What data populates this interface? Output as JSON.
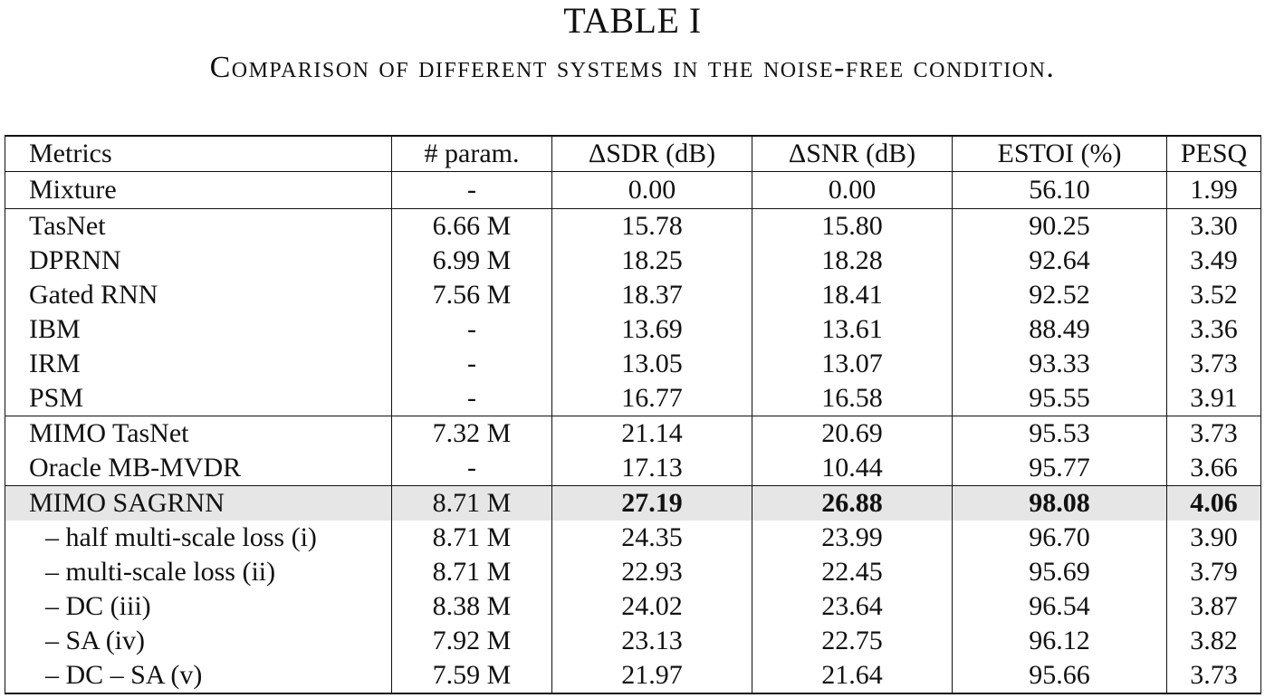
{
  "caption": {
    "label": "TABLE I",
    "text": "Comparison of different systems in the noise-free condition."
  },
  "table": {
    "headers": [
      "Metrics",
      "# param.",
      "ΔSDR (dB)",
      "ΔSNR (dB)",
      "ESTOI (%)",
      "PESQ"
    ],
    "rows": [
      [
        "Mixture",
        "-",
        "0.00",
        "0.00",
        "56.10",
        "1.99"
      ],
      [
        "TasNet",
        "6.66 M",
        "15.78",
        "15.80",
        "90.25",
        "3.30"
      ],
      [
        "DPRNN",
        "6.99 M",
        "18.25",
        "18.28",
        "92.64",
        "3.49"
      ],
      [
        "Gated RNN",
        "7.56 M",
        "18.37",
        "18.41",
        "92.52",
        "3.52"
      ],
      [
        "IBM",
        "-",
        "13.69",
        "13.61",
        "88.49",
        "3.36"
      ],
      [
        "IRM",
        "-",
        "13.05",
        "13.07",
        "93.33",
        "3.73"
      ],
      [
        "PSM",
        "-",
        "16.77",
        "16.58",
        "95.55",
        "3.91"
      ],
      [
        "MIMO TasNet",
        "7.32 M",
        "21.14",
        "20.69",
        "95.53",
        "3.73"
      ],
      [
        "Oracle MB-MVDR",
        "-",
        "17.13",
        "10.44",
        "95.77",
        "3.66"
      ],
      [
        "MIMO SAGRNN",
        "8.71 M",
        "27.19",
        "26.88",
        "98.08",
        "4.06"
      ],
      [
        "– half multi-scale loss (i)",
        "8.71 M",
        "24.35",
        "23.99",
        "96.70",
        "3.90"
      ],
      [
        "– multi-scale loss (ii)",
        "8.71 M",
        "22.93",
        "22.45",
        "95.69",
        "3.79"
      ],
      [
        "– DC (iii)",
        "8.38 M",
        "24.02",
        "23.64",
        "96.54",
        "3.87"
      ],
      [
        "– SA (iv)",
        "7.92 M",
        "23.13",
        "22.75",
        "96.12",
        "3.82"
      ],
      [
        "– DC – SA (v)",
        "7.59 M",
        "21.97",
        "21.64",
        "95.66",
        "3.73"
      ]
    ]
  }
}
